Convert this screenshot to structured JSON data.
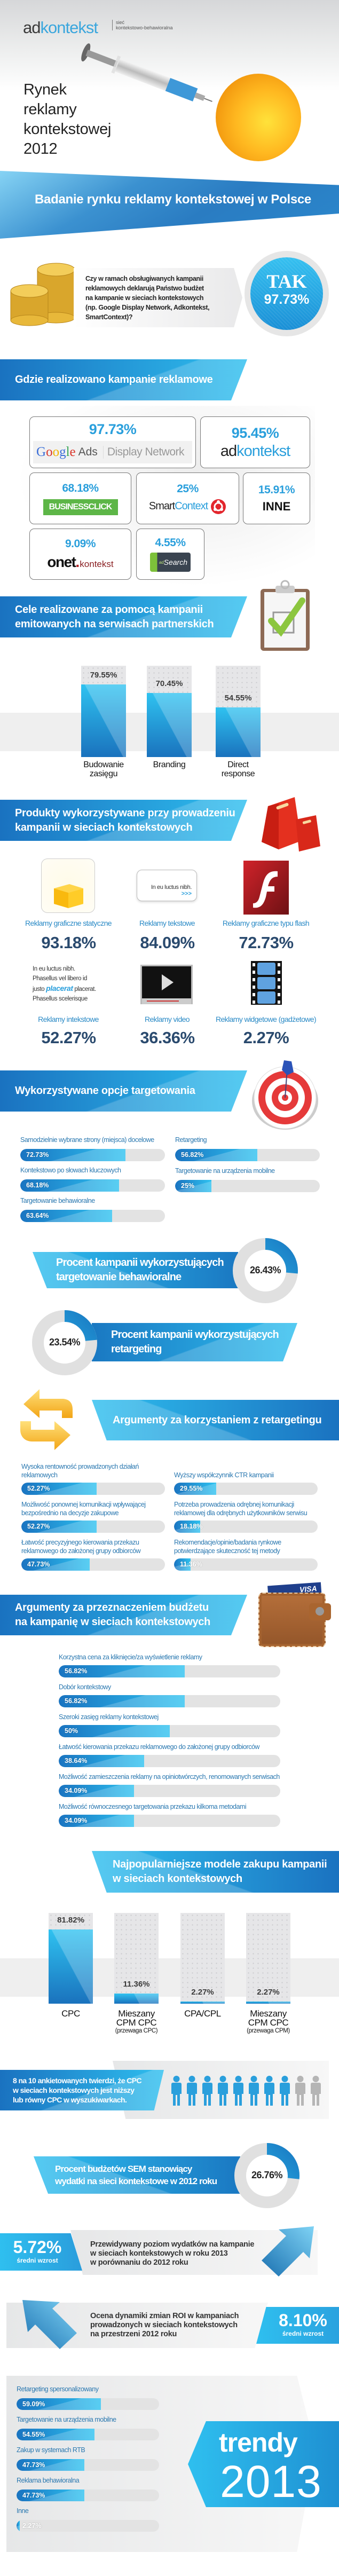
{
  "brand": {
    "logo_ad": "ad",
    "logo_kontekst": "kontekst",
    "tagline_1": "sieć",
    "tagline_2": "kontekstowo-behawioralna"
  },
  "hero": {
    "title_lines": [
      "Rynek",
      "reklamy",
      "kontekstowej",
      "2012"
    ]
  },
  "colors": {
    "brand_blue": "#2fbfef",
    "dark_blue": "#1a72c0",
    "value_navy": "#2a4a6e",
    "track_gray": "#e3e3e3",
    "label_blue": "#2a78b0"
  },
  "survey": {
    "title": "Badanie rynku reklamy kontekstowej w Polsce",
    "question_lines": [
      "Czy w ramach obsługiwanych kampanii",
      "reklamowych deklarują Państwo budżet",
      "na kampanie w sieciach kontekstowych",
      "(np. Google Display Network, Adkontekst,",
      "SmartContext)?"
    ],
    "answer": "TAK",
    "answer_value": "97.73%",
    "icon": "coins-icon"
  },
  "networks": {
    "title": "Gdzie realizowano kampanie reklamowe",
    "items": [
      {
        "value": "97.73%",
        "logo_1": "Google",
        "logo_2": "Ads",
        "logo_3": "Display Network"
      },
      {
        "value": "95.45%",
        "logo_1": "ad",
        "logo_2": "kontekst"
      },
      {
        "value": "68.18%",
        "logo_1": "BUSINESSCLICK"
      },
      {
        "value": "25%",
        "logo_1": "Smart",
        "logo_2": "Context"
      },
      {
        "value": "15.91%",
        "logo_1": "INNE"
      },
      {
        "value": "9.09%",
        "logo_1": "onet",
        "logo_2": ".",
        "logo_3": "kontekst"
      },
      {
        "value": "4.55%",
        "logo_1": "ad",
        "logo_2": "Search"
      }
    ]
  },
  "goals": {
    "title_lines": [
      "Cele realizowane za pomocą kampanii",
      "emitowanych na serwisach partnerskich"
    ],
    "icon": "clipboard-check-icon"
  },
  "products": {
    "title_lines": [
      "Produkty wykorzystywane przy prowadzeniu",
      "kampanii w sieciach kontekstowych"
    ],
    "icon": "shopping-bags-icon",
    "text_ad_sample": "In eu luctus nibh.",
    "text_ad_more": ">>>",
    "intext_sample": [
      "In eu luctus nibh.",
      "Phasellus vel libero id",
      "justo",
      "placerat",
      "placerat.",
      "Phasellus scelerisque"
    ],
    "items": [
      {
        "label": "Reklamy graficzne statyczne",
        "value": "93.18%",
        "icon": "static-image-cube-icon"
      },
      {
        "label": "Reklamy tekstowe",
        "value": "84.09%",
        "icon": "text-ad-icon"
      },
      {
        "label": "Reklamy graficzne typu flash",
        "value": "72.73%",
        "icon": "flash-icon"
      },
      {
        "label": "Reklamy intekstowe",
        "value": "52.27%",
        "icon": "intext-icon"
      },
      {
        "label": "Reklamy video",
        "value": "36.36%",
        "icon": "video-player-icon"
      },
      {
        "label": "Reklamy widgetowe (gadżetowe)",
        "value": "2.27%",
        "icon": "film-strip-icon"
      }
    ]
  },
  "targeting": {
    "title": "Wykorzystywane opcje targetowania",
    "icon": "target-icon",
    "left": [
      {
        "label": "Samodzielnie wybrane strony (miejsca) docelowe",
        "value": 72.73
      },
      {
        "label": "Kontekstowo po słowach kluczowych",
        "value": 68.18
      },
      {
        "label": "Targetowanie behawioralne",
        "value": 63.64
      }
    ],
    "right": [
      {
        "label": "Retargeting",
        "value": 56.82
      },
      {
        "label": "Targetowanie na urządzenia mobilne",
        "value": 25
      }
    ]
  },
  "behavioral_share": {
    "title_lines": [
      "Procent kampanii wykorzystujących",
      "targetowanie behawioralne"
    ],
    "value": 26.43,
    "value_label": "26.43%"
  },
  "retargeting_share": {
    "title_lines": [
      "Procent kampanii wykorzystujących",
      "retargeting"
    ],
    "value": 23.54,
    "value_label": "23.54%"
  },
  "retargeting_args": {
    "title": "Argumenty za korzystaniem z retargetingu",
    "icon": "refresh-arrows-icon",
    "left": [
      {
        "label": "Wysoka rentowność prowadzonych działań\nreklamowych",
        "value": 52.27
      },
      {
        "label": "Możliwość ponownej komunikacji wpływającej\nbezpośrednio na decyzje zakupowe",
        "value": 52.27
      },
      {
        "label": "Łatwość precyzyjnego kierowania przekazu\nreklamowego do założonej grupy odbiorców",
        "value": 47.73
      }
    ],
    "right": [
      {
        "label": "Wyższy współczynnik CTR kampanii",
        "value": 29.55
      },
      {
        "label": "Potrzeba prowadzenia odrębnej komunikacji\nreklamowej dla odrębnych użytkowników serwisu",
        "value": 18.18
      },
      {
        "label": "Rekomendacje/opinie/badania rynkowe\npotwierdzające skuteczność tej metody",
        "value": 11.36
      }
    ]
  },
  "budget_args": {
    "title_lines": [
      "Argumenty za przeznaczeniem budżetu",
      "na kampanię w sieciach kontekstowych"
    ],
    "icon": "wallet-icon",
    "card_brand": "VISA",
    "items": [
      {
        "label": "Korzystna cena za kliknięcie/za wyświetlenie reklamy",
        "value": 56.82
      },
      {
        "label": "Dobór kontekstowy",
        "value": 56.82
      },
      {
        "label": "Szeroki zasięg reklamy kontekstowej",
        "value": 50
      },
      {
        "label": "Łatwość kierowania przekazu reklamowego do założonej grupy odbiorców",
        "value": 38.64
      },
      {
        "label": "Możliwość zamieszczenia reklamy na opiniotwórczych, renomowanych serwisach",
        "value": 34.09
      },
      {
        "label": "Możliwość równoczesnego targetowania przekazu kilkoma metodami",
        "value": 34.09
      }
    ]
  },
  "pricing_models": {
    "title_lines": [
      "Najpopularniejsze modele zakupu kampanii",
      "w sieciach kontekstowych"
    ]
  },
  "cpc_claim": {
    "text_lines": [
      "8 na 10 ankietowanych twierdzi, że CPC",
      "w sieciach kontekstowych jest niższy",
      "lub równy CPC w wyszukiwarkach."
    ],
    "people_total": 10,
    "people_highlighted": 8,
    "icon": "person-icon"
  },
  "sem_share": {
    "title_lines": [
      "Procent budżetów SEM stanowiący",
      "wydatki na sieci kontekstowe w 2012 roku"
    ],
    "value": 26.76,
    "value_label": "26.76%"
  },
  "spend_growth": {
    "value": "5.72%",
    "caption": "średni wzrost",
    "text_lines": [
      "Przewidywany poziom wydatków na kampanie",
      "w sieciach kontekstowych w roku 2013",
      "w porównaniu do 2012 roku"
    ],
    "icon": "arrow-up-right-icon"
  },
  "roi_growth": {
    "value": "8.10%",
    "caption": "średni wzrost",
    "text_lines": [
      "Ocena dynamiki zmian ROI w kampaniach",
      "prowadzonych w sieciach kontekstowych",
      "na przestrzeni 2012 roku"
    ],
    "icon": "arrow-up-left-icon"
  },
  "trends": {
    "title_1": "trendy",
    "title_2": "2013",
    "items": [
      {
        "label": "Retargeting spersonalizowany",
        "value": 59.09
      },
      {
        "label": "Targetowanie na urządzenia mobilne",
        "value": 54.55
      },
      {
        "label": "Zakup w systemach RTB",
        "value": 47.73
      },
      {
        "label": "Reklama behawioralna",
        "value": 47.73
      },
      {
        "label": "Inne",
        "value": 2.27
      }
    ]
  },
  "chart_data": [
    {
      "type": "bar",
      "categories": [
        "Budowanie\nzasięgu",
        "Branding",
        "Direct\nresponse"
      ],
      "values": [
        79.55,
        70.45,
        54.55
      ],
      "value_labels": [
        "79.55%",
        "70.45%",
        "54.55%"
      ],
      "ylim": [
        0,
        100
      ],
      "grid": false
    },
    {
      "type": "bar",
      "categories": [
        "CPC",
        "Mieszany\nCPM CPC",
        "CPA/CPL",
        "Mieszany\nCPM CPC"
      ],
      "category_notes": [
        "",
        "(przewaga CPC)",
        "",
        "(przewaga CPM)"
      ],
      "values": [
        81.82,
        11.36,
        2.27,
        2.27
      ],
      "value_labels": [
        "81.82%",
        "11.36%",
        "2.27%",
        "2.27%"
      ],
      "ylim": [
        0,
        100
      ],
      "grid": false
    }
  ]
}
